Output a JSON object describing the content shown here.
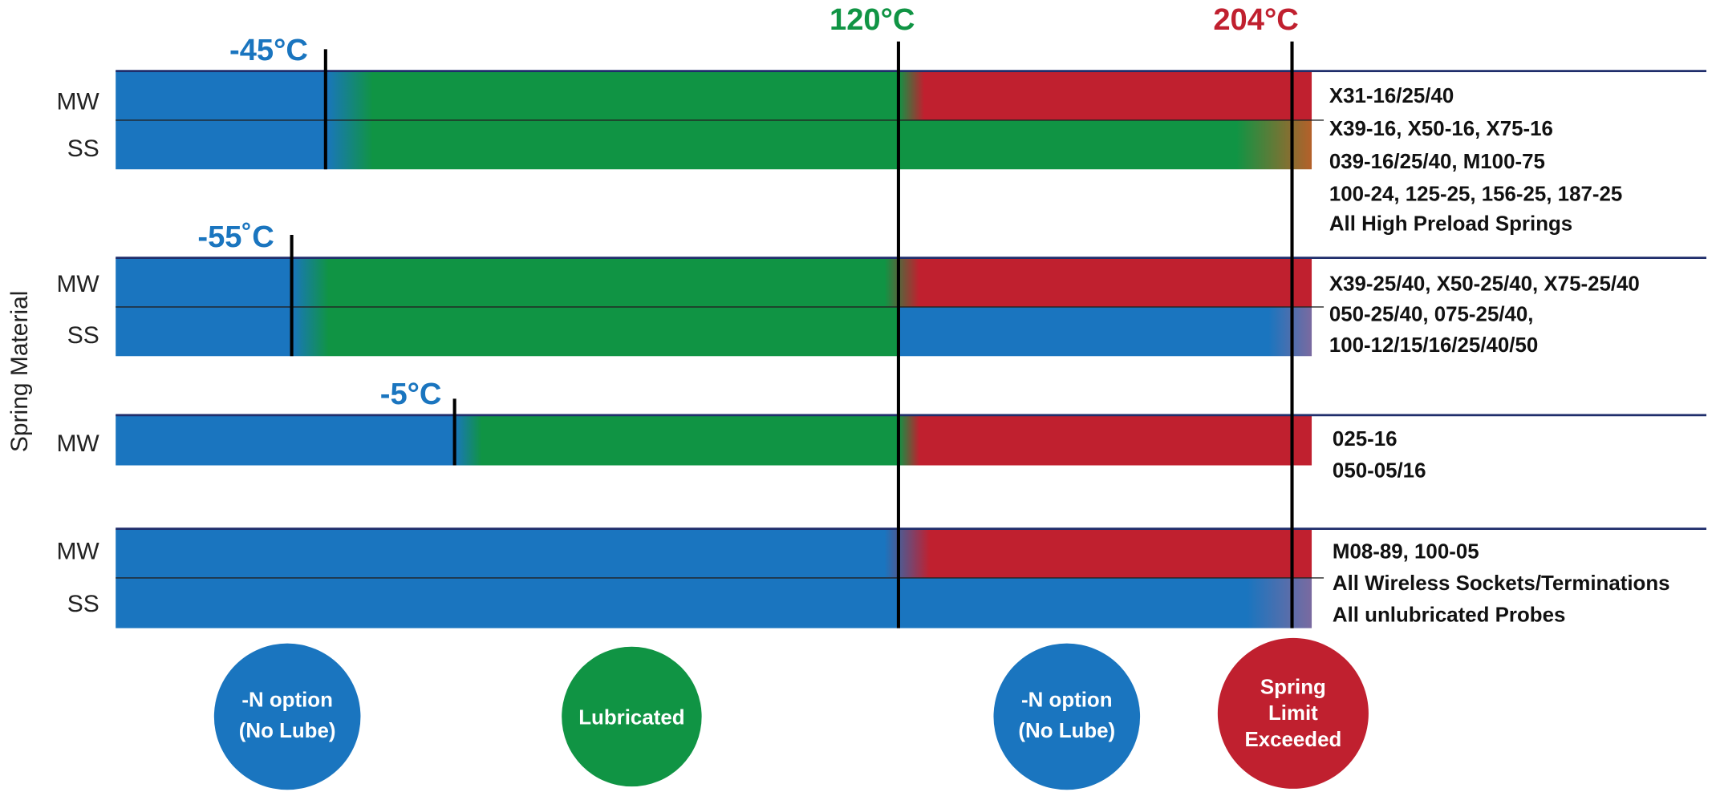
{
  "temperature_markers": [
    "120°C",
    "204°C"
  ],
  "axis_label": "Spring Material",
  "groups": [
    {
      "low_label": "-45°C",
      "rows": [
        "MW",
        "SS"
      ],
      "parts": [
        "X31-16/25/40",
        "X39-16, X50-16, X75-16",
        "039-16/25/40,  M100-75",
        "100-24, 125-25, 156-25, 187-25",
        "All High Preload Springs"
      ]
    },
    {
      "low_label": "-55˚C",
      "rows": [
        "MW",
        "SS"
      ],
      "parts": [
        "X39-25/40, X50-25/40, X75-25/40",
        "050-25/40, 075-25/40,",
        "100-12/15/16/25/40/50"
      ]
    },
    {
      "low_label": "-5°C",
      "rows": [
        "MW"
      ],
      "parts": [
        "025-16",
        "050-05/16"
      ]
    },
    {
      "rows": [
        "MW",
        "SS"
      ],
      "parts": [
        "M08-89, 100-05",
        "All Wireless Sockets/Terminations",
        "All unlubricated Probes"
      ]
    }
  ],
  "legend": [
    {
      "lines": [
        "-N option",
        "(No Lube)"
      ]
    },
    {
      "lines": [
        "Lubricated"
      ]
    },
    {
      "lines": [
        "-N option",
        "(No Lube)"
      ]
    },
    {
      "lines": [
        "Spring",
        "Limit",
        "Exceeded"
      ]
    }
  ]
}
